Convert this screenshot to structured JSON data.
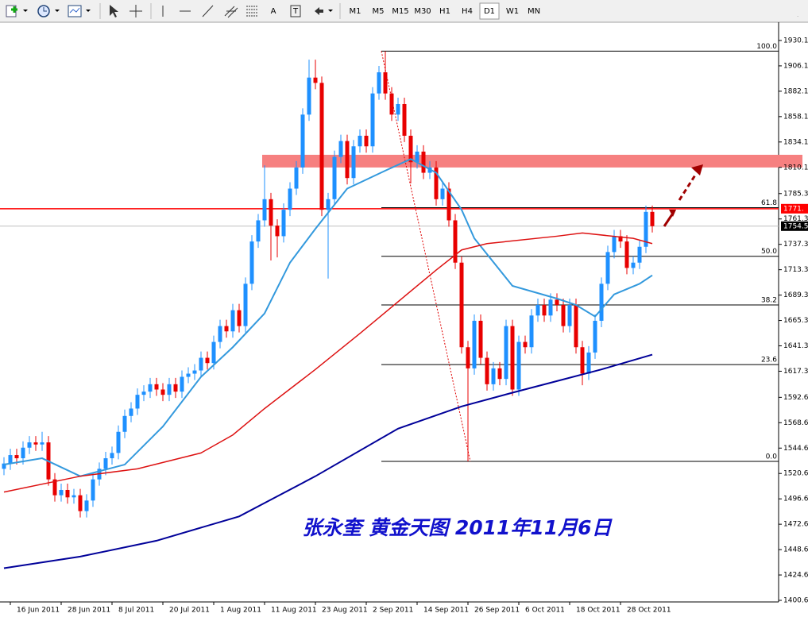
{
  "toolbar": {
    "drawing_tools": [
      "A",
      "T"
    ],
    "timeframes": [
      "M1",
      "M5",
      "M15",
      "M30",
      "H1",
      "H4",
      "D1",
      "W1",
      "MN"
    ],
    "active": "D1"
  },
  "chart_data": {
    "type": "candlestick",
    "annotation": "张永奎 黄金天图 2011年11月6日",
    "up_color": "#1e90ff",
    "down_color": "#e80000",
    "categories": [
      null,
      "16 Jun 2011",
      null,
      null,
      null,
      null,
      null,
      null,
      null,
      "28 Jun 2011",
      null,
      null,
      null,
      null,
      null,
      null,
      null,
      "8 Jul 2011",
      null,
      null,
      null,
      null,
      null,
      null,
      null,
      "20 Jul 2011",
      null,
      null,
      null,
      null,
      null,
      null,
      null,
      "1 Aug 2011",
      null,
      null,
      null,
      null,
      null,
      null,
      null,
      "11 Aug 2011",
      null,
      null,
      null,
      null,
      null,
      null,
      null,
      "23 Aug 2011",
      null,
      null,
      null,
      null,
      null,
      null,
      null,
      "2 Sep 2011",
      null,
      null,
      null,
      null,
      null,
      null,
      null,
      "14 Sep 2011",
      null,
      null,
      null,
      null,
      null,
      null,
      null,
      "26 Sep 2011",
      null,
      null,
      null,
      null,
      null,
      null,
      null,
      "6 Oct 2011",
      null,
      null,
      null,
      null,
      null,
      null,
      null,
      "18 Oct 2011",
      null,
      null,
      null,
      null,
      null,
      null,
      null,
      "28 Oct 2011",
      null,
      null,
      null,
      null,
      null
    ],
    "open": [
      1525,
      1530,
      1538,
      1535,
      1545,
      1550,
      1548,
      1550,
      1515,
      1500,
      1505,
      1498,
      1500,
      1485,
      1495,
      1515,
      1525,
      1535,
      1540,
      1560,
      1575,
      1582,
      1595,
      1598,
      1605,
      1600,
      1595,
      1605,
      1598,
      1612,
      1615,
      1618,
      1630,
      1625,
      1645,
      1660,
      1655,
      1675,
      1660,
      1700,
      1740,
      1760,
      1780,
      1755,
      1745,
      1770,
      1790,
      1810,
      1860,
      1895,
      1890,
      1770,
      1780,
      1820,
      1835,
      1800,
      1830,
      1840,
      1830,
      1880,
      1900,
      1880,
      1860,
      1870,
      1840,
      1815,
      1825,
      1805,
      1810,
      1780,
      1790,
      1760,
      1720,
      1640,
      1620,
      1665,
      1630,
      1605,
      1620,
      1610,
      1660,
      1600,
      1645,
      1640,
      1670,
      1680,
      1670,
      1685,
      1680,
      1660,
      1680,
      1640,
      1615,
      1635,
      1665,
      1700,
      1730,
      1745,
      1740,
      1715,
      1720,
      1735,
      1768
    ],
    "high": [
      1536,
      1544,
      1544,
      1551,
      1556,
      1556,
      1560,
      1556,
      1521,
      1511,
      1511,
      1506,
      1506,
      1501,
      1521,
      1531,
      1541,
      1546,
      1566,
      1581,
      1588,
      1601,
      1604,
      1611,
      1611,
      1606,
      1611,
      1611,
      1618,
      1621,
      1624,
      1636,
      1636,
      1651,
      1666,
      1666,
      1681,
      1681,
      1706,
      1746,
      1766,
      1812,
      1786,
      1761,
      1776,
      1796,
      1816,
      1866,
      1912,
      1912,
      1896,
      1786,
      1826,
      1841,
      1841,
      1836,
      1846,
      1846,
      1886,
      1906,
      1920,
      1886,
      1876,
      1876,
      1846,
      1831,
      1831,
      1816,
      1816,
      1796,
      1796,
      1766,
      1726,
      1646,
      1671,
      1671,
      1636,
      1626,
      1626,
      1666,
      1666,
      1651,
      1651,
      1676,
      1686,
      1686,
      1691,
      1691,
      1686,
      1686,
      1686,
      1646,
      1641,
      1671,
      1706,
      1736,
      1751,
      1751,
      1746,
      1726,
      1741,
      1774,
      1774
    ],
    "low": [
      1519,
      1524,
      1529,
      1529,
      1539,
      1542,
      1542,
      1509,
      1494,
      1494,
      1492,
      1492,
      1479,
      1479,
      1489,
      1509,
      1519,
      1529,
      1534,
      1554,
      1569,
      1576,
      1589,
      1592,
      1594,
      1589,
      1589,
      1592,
      1592,
      1606,
      1609,
      1612,
      1619,
      1619,
      1639,
      1649,
      1649,
      1654,
      1654,
      1694,
      1734,
      1754,
      1722,
      1725,
      1739,
      1764,
      1784,
      1804,
      1854,
      1884,
      1764,
      1705,
      1774,
      1814,
      1794,
      1794,
      1824,
      1824,
      1824,
      1874,
      1874,
      1854,
      1854,
      1834,
      1795,
      1809,
      1799,
      1799,
      1774,
      1774,
      1754,
      1714,
      1634,
      1532,
      1614,
      1624,
      1599,
      1599,
      1604,
      1604,
      1594,
      1594,
      1634,
      1634,
      1664,
      1664,
      1664,
      1674,
      1654,
      1654,
      1634,
      1604,
      1609,
      1629,
      1659,
      1694,
      1724,
      1734,
      1709,
      1709,
      1714,
      1729,
      1748.5
    ],
    "close": [
      1530,
      1538,
      1535,
      1545,
      1550,
      1548,
      1550,
      1515,
      1500,
      1505,
      1498,
      1500,
      1485,
      1495,
      1515,
      1525,
      1535,
      1540,
      1560,
      1575,
      1582,
      1595,
      1598,
      1605,
      1600,
      1595,
      1605,
      1598,
      1612,
      1615,
      1618,
      1630,
      1625,
      1645,
      1660,
      1655,
      1675,
      1660,
      1700,
      1740,
      1760,
      1780,
      1755,
      1745,
      1770,
      1790,
      1810,
      1860,
      1895,
      1890,
      1770,
      1780,
      1820,
      1835,
      1800,
      1830,
      1840,
      1830,
      1880,
      1900,
      1880,
      1860,
      1870,
      1840,
      1815,
      1825,
      1805,
      1810,
      1780,
      1790,
      1760,
      1720,
      1640,
      1620,
      1665,
      1630,
      1605,
      1620,
      1610,
      1660,
      1600,
      1645,
      1640,
      1670,
      1680,
      1670,
      1685,
      1680,
      1660,
      1680,
      1640,
      1615,
      1635,
      1665,
      1700,
      1730,
      1745,
      1740,
      1715,
      1720,
      1735,
      1768,
      1754.5
    ],
    "moving_averages": [
      {
        "color": "#3399dd",
        "x": [
          0,
          6,
          12,
          19,
          25,
          31,
          36,
          41,
          45,
          49,
          54,
          60,
          64,
          68,
          72,
          74,
          80,
          87,
          90,
          93,
          96,
          100,
          102
        ],
        "values": [
          1529,
          1535,
          1518,
          1529,
          1565,
          1612,
          1640,
          1672,
          1720,
          1752,
          1790,
          1807,
          1818,
          1805,
          1770,
          1743,
          1698,
          1686,
          1680,
          1669,
          1690,
          1700,
          1708
        ]
      },
      {
        "color": "#dd1111",
        "x": [
          0,
          12,
          21,
          31,
          36,
          41,
          49,
          56,
          62,
          68,
          72,
          76,
          87,
          91,
          99,
          102
        ],
        "values": [
          1503,
          1518,
          1525,
          1540,
          1557,
          1582,
          1619,
          1653,
          1683,
          1713,
          1732,
          1738,
          1745,
          1748,
          1743,
          1738
        ]
      },
      {
        "color": "#000099",
        "x": [
          0,
          12,
          24,
          37,
          49,
          62,
          72,
          80,
          87,
          94,
          102
        ],
        "values": [
          1431,
          1442,
          1457,
          1480,
          1518,
          1563,
          1584,
          1597,
          1608,
          1619,
          1633
        ]
      }
    ],
    "zone": {
      "range": [
        1810,
        1822
      ],
      "color": "#f68080"
    },
    "fibonacci": {
      "color": "#000000",
      "trend_color": "#e00000",
      "levels": [
        {
          "value": 1920,
          "label": "100.0"
        },
        {
          "value": 1772,
          "label": "61.8"
        },
        {
          "value": 1726,
          "label": "50.0"
        },
        {
          "value": 1680,
          "label": "38.2"
        },
        {
          "value": 1623.6,
          "label": "23.6"
        },
        {
          "value": 1532,
          "label": "0.0"
        }
      ]
    },
    "horizontal_lines": [
      {
        "value": 1771,
        "label": "1771.",
        "color": "#ff0000"
      },
      {
        "value": 1754.5,
        "color": "#c0c0c0"
      }
    ],
    "ylim": [
      1399.1,
      1945.1
    ],
    "yticks": [
      1930.1,
      1906.1,
      1882.1,
      1858.1,
      1834.1,
      1810.1,
      1785.3,
      1761.3,
      1737.3,
      1713.3,
      1689.3,
      1665.3,
      1641.3,
      1617.3,
      1592.6,
      1568.6,
      1544.6,
      1520.6,
      1496.6,
      1472.6,
      1448.6,
      1424.6,
      1400.6
    ]
  }
}
